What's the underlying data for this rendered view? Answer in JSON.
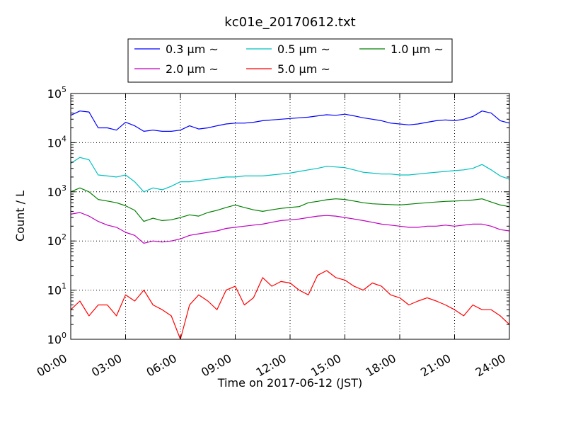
{
  "chart_data": {
    "type": "line",
    "title": "kc01e_20170612.txt",
    "xlabel": "Time on 2017-06-12 (JST)",
    "ylabel": "Count / L",
    "yscale": "log",
    "ylim": [
      1,
      100000
    ],
    "xlim": [
      "00:00",
      "24:00"
    ],
    "x_tick_labels": [
      "00:00",
      "03:00",
      "06:00",
      "09:00",
      "12:00",
      "15:00",
      "18:00",
      "21:00",
      "24:00"
    ],
    "y_tick_labels": [
      {
        "base": "10",
        "exp": "0"
      },
      {
        "base": "10",
        "exp": "1"
      },
      {
        "base": "10",
        "exp": "2"
      },
      {
        "base": "10",
        "exp": "3"
      },
      {
        "base": "10",
        "exp": "4"
      },
      {
        "base": "10",
        "exp": "5"
      }
    ],
    "grid": true,
    "legend_position": "top (above plot)",
    "x": [
      "00:00",
      "00:30",
      "01:00",
      "01:30",
      "02:00",
      "02:30",
      "03:00",
      "03:30",
      "04:00",
      "04:30",
      "05:00",
      "05:30",
      "06:00",
      "06:30",
      "07:00",
      "07:30",
      "08:00",
      "08:30",
      "09:00",
      "09:30",
      "10:00",
      "10:30",
      "11:00",
      "11:30",
      "12:00",
      "12:30",
      "13:00",
      "13:30",
      "14:00",
      "14:30",
      "15:00",
      "15:30",
      "16:00",
      "16:30",
      "17:00",
      "17:30",
      "18:00",
      "18:30",
      "19:00",
      "19:30",
      "20:00",
      "20:30",
      "21:00",
      "21:30",
      "22:00",
      "22:30",
      "23:00",
      "23:30",
      "24:00"
    ],
    "series": [
      {
        "name": "0.3 μm ~",
        "color": "#0000ff",
        "values": [
          36000,
          44000,
          42000,
          20000,
          20000,
          18000,
          26000,
          22000,
          17000,
          18000,
          17000,
          17000,
          18000,
          22000,
          19000,
          20000,
          22000,
          24000,
          25000,
          25000,
          26000,
          28000,
          29000,
          30000,
          31000,
          32000,
          33000,
          35000,
          37000,
          36000,
          38000,
          35000,
          32000,
          30000,
          28000,
          25000,
          24000,
          23000,
          24000,
          26000,
          28000,
          29000,
          28000,
          30000,
          34000,
          44000,
          40000,
          28000,
          25000
        ]
      },
      {
        "name": "0.5 μm ~",
        "color": "#00bfbf",
        "values": [
          3800,
          5000,
          4500,
          2200,
          2100,
          2000,
          2200,
          1600,
          1000,
          1200,
          1100,
          1300,
          1600,
          1600,
          1700,
          1800,
          1900,
          2000,
          2000,
          2100,
          2100,
          2100,
          2200,
          2300,
          2400,
          2600,
          2800,
          3000,
          3300,
          3200,
          3100,
          2800,
          2500,
          2400,
          2300,
          2300,
          2200,
          2200,
          2300,
          2400,
          2500,
          2600,
          2700,
          2800,
          3000,
          3600,
          2800,
          2100,
          1800
        ]
      },
      {
        "name": "1.0 μm ~",
        "color": "#008000",
        "values": [
          1000,
          1200,
          1000,
          700,
          650,
          600,
          520,
          420,
          250,
          290,
          260,
          270,
          300,
          340,
          320,
          380,
          420,
          480,
          540,
          480,
          430,
          400,
          430,
          460,
          480,
          500,
          600,
          640,
          690,
          720,
          700,
          650,
          600,
          570,
          560,
          550,
          540,
          560,
          580,
          600,
          620,
          640,
          650,
          660,
          680,
          720,
          620,
          540,
          500
        ]
      },
      {
        "name": "2.0 μm ~",
        "color": "#bf00bf",
        "values": [
          350,
          380,
          320,
          250,
          210,
          190,
          150,
          130,
          90,
          100,
          95,
          100,
          110,
          130,
          140,
          150,
          160,
          180,
          190,
          200,
          210,
          220,
          240,
          260,
          270,
          280,
          300,
          320,
          330,
          320,
          300,
          280,
          260,
          240,
          220,
          210,
          200,
          190,
          190,
          200,
          200,
          210,
          200,
          210,
          220,
          220,
          200,
          170,
          160
        ]
      },
      {
        "name": "5.0 μm ~",
        "color": "#ff0000",
        "values": [
          4,
          6,
          3,
          5,
          5,
          3,
          8,
          6,
          10,
          5,
          4,
          3,
          1,
          5,
          8,
          6,
          4,
          10,
          12,
          5,
          7,
          18,
          12,
          15,
          14,
          10,
          8,
          20,
          25,
          18,
          16,
          12,
          10,
          14,
          12,
          8,
          7,
          5,
          6,
          7,
          6,
          5,
          4,
          3,
          5,
          4,
          4,
          3,
          2
        ]
      }
    ]
  }
}
